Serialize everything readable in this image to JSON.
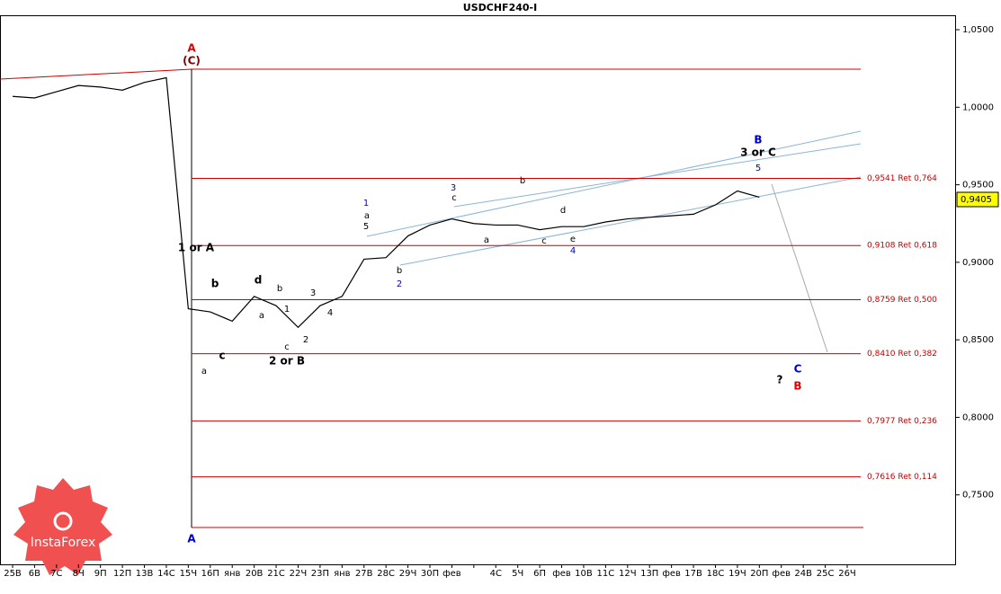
{
  "chart_data": {
    "type": "line",
    "title": "USDCHF240-I",
    "categories": [
      "25B",
      "6B",
      "7C",
      "8Ч",
      "9П",
      "12П",
      "13B",
      "14C",
      "15Ч",
      "16П",
      "янв",
      "20B",
      "21C",
      "22Ч",
      "23П",
      "янв",
      "27B",
      "28C",
      "29Ч",
      "30П",
      "фев",
      null,
      "4C",
      "5Ч",
      "6П",
      "фев",
      "10B",
      "11C",
      "12Ч",
      "13П",
      "фев",
      "17B",
      "18C",
      "19Ч",
      "20П",
      "фев",
      "24B",
      "25C",
      "26Ч"
    ],
    "series": [
      {
        "name": "USDCHF",
        "color": "#000000",
        "values": [
          1.007,
          1.006,
          1.01,
          1.014,
          1.013,
          1.011,
          1.016,
          1.019,
          0.87,
          0.868,
          0.862,
          0.878,
          0.872,
          0.858,
          0.872,
          0.878,
          0.902,
          0.903,
          0.917,
          0.924,
          0.928,
          0.925,
          0.924,
          0.924,
          0.921,
          0.923,
          0.923,
          0.926,
          0.928,
          0.929,
          0.93,
          0.931,
          0.937,
          0.946,
          0.942,
          null,
          null,
          null,
          null
        ]
      }
    ],
    "ylim": [
      0.7052,
      1.0593
    ],
    "yticks": [
      {
        "value": 1.05,
        "label": "1,0500"
      },
      {
        "value": 1.0,
        "label": "1,0000"
      },
      {
        "value": 0.95,
        "label": "0,9500"
      },
      {
        "value": 0.9,
        "label": "0,9000"
      },
      {
        "value": 0.85,
        "label": "0,8500"
      },
      {
        "value": 0.8,
        "label": "0,8000"
      },
      {
        "value": 0.75,
        "label": "0,7500"
      }
    ],
    "current_price": {
      "value": 0.9405,
      "label": "0,9405"
    },
    "levels": [
      {
        "value": 0.9541,
        "label": "0,9541 Ret 0,764"
      },
      {
        "value": 0.9108,
        "label": "0,9108 Ret 0,618"
      },
      {
        "value": 0.8759,
        "label": "0,8759 Ret 0,500"
      },
      {
        "value": 0.841,
        "label": "0,8410 Ret 0,382"
      },
      {
        "value": 0.7977,
        "label": "0,7977 Ret 0,236"
      },
      {
        "value": 0.7616,
        "label": "0,7616 Ret 0,114"
      }
    ],
    "level_color": "#cc0000",
    "annotations": [
      {
        "text": "A",
        "color": "#e00000"
      },
      {
        "text": "(C)",
        "color": "#800000"
      },
      {
        "text": "1 or A",
        "color": "#000000"
      },
      {
        "text": "a",
        "color": "#000000"
      },
      {
        "text": "b",
        "color": "#000000"
      },
      {
        "text": "c",
        "color": "#000000"
      },
      {
        "text": "d",
        "color": "#000000"
      },
      {
        "text": "a",
        "color": "#000000"
      },
      {
        "text": "b",
        "color": "#000000"
      },
      {
        "text": "c",
        "color": "#000000"
      },
      {
        "text": "1",
        "color": "#000000"
      },
      {
        "text": "2",
        "color": "#000000"
      },
      {
        "text": "3",
        "color": "#000000"
      },
      {
        "text": "4",
        "color": "#000000"
      },
      {
        "text": "2 or B",
        "color": "#000000"
      },
      {
        "text": "1",
        "color": "#0000cc"
      },
      {
        "text": "a",
        "color": "#000000"
      },
      {
        "text": "5",
        "color": "#000000"
      },
      {
        "text": "b",
        "color": "#000000"
      },
      {
        "text": "2",
        "color": "#0000cc"
      },
      {
        "text": "3",
        "color": "#0000cc"
      },
      {
        "text": "c",
        "color": "#000000"
      },
      {
        "text": "a",
        "color": "#000000"
      },
      {
        "text": "b",
        "color": "#000000"
      },
      {
        "text": "c",
        "color": "#000000"
      },
      {
        "text": "d",
        "color": "#000000"
      },
      {
        "text": "e",
        "color": "#000000"
      },
      {
        "text": "4",
        "color": "#0000cc"
      },
      {
        "text": "B",
        "color": "#0000cc"
      },
      {
        "text": "3 or C",
        "color": "#000000"
      },
      {
        "text": "5",
        "color": "#0000cc"
      },
      {
        "text": "?",
        "color": "#000000"
      },
      {
        "text": "C",
        "color": "#0000cc"
      },
      {
        "text": "B",
        "color": "#e00000"
      },
      {
        "text": "A",
        "color": "#0000cc"
      }
    ],
    "logo": "InstaForex"
  }
}
